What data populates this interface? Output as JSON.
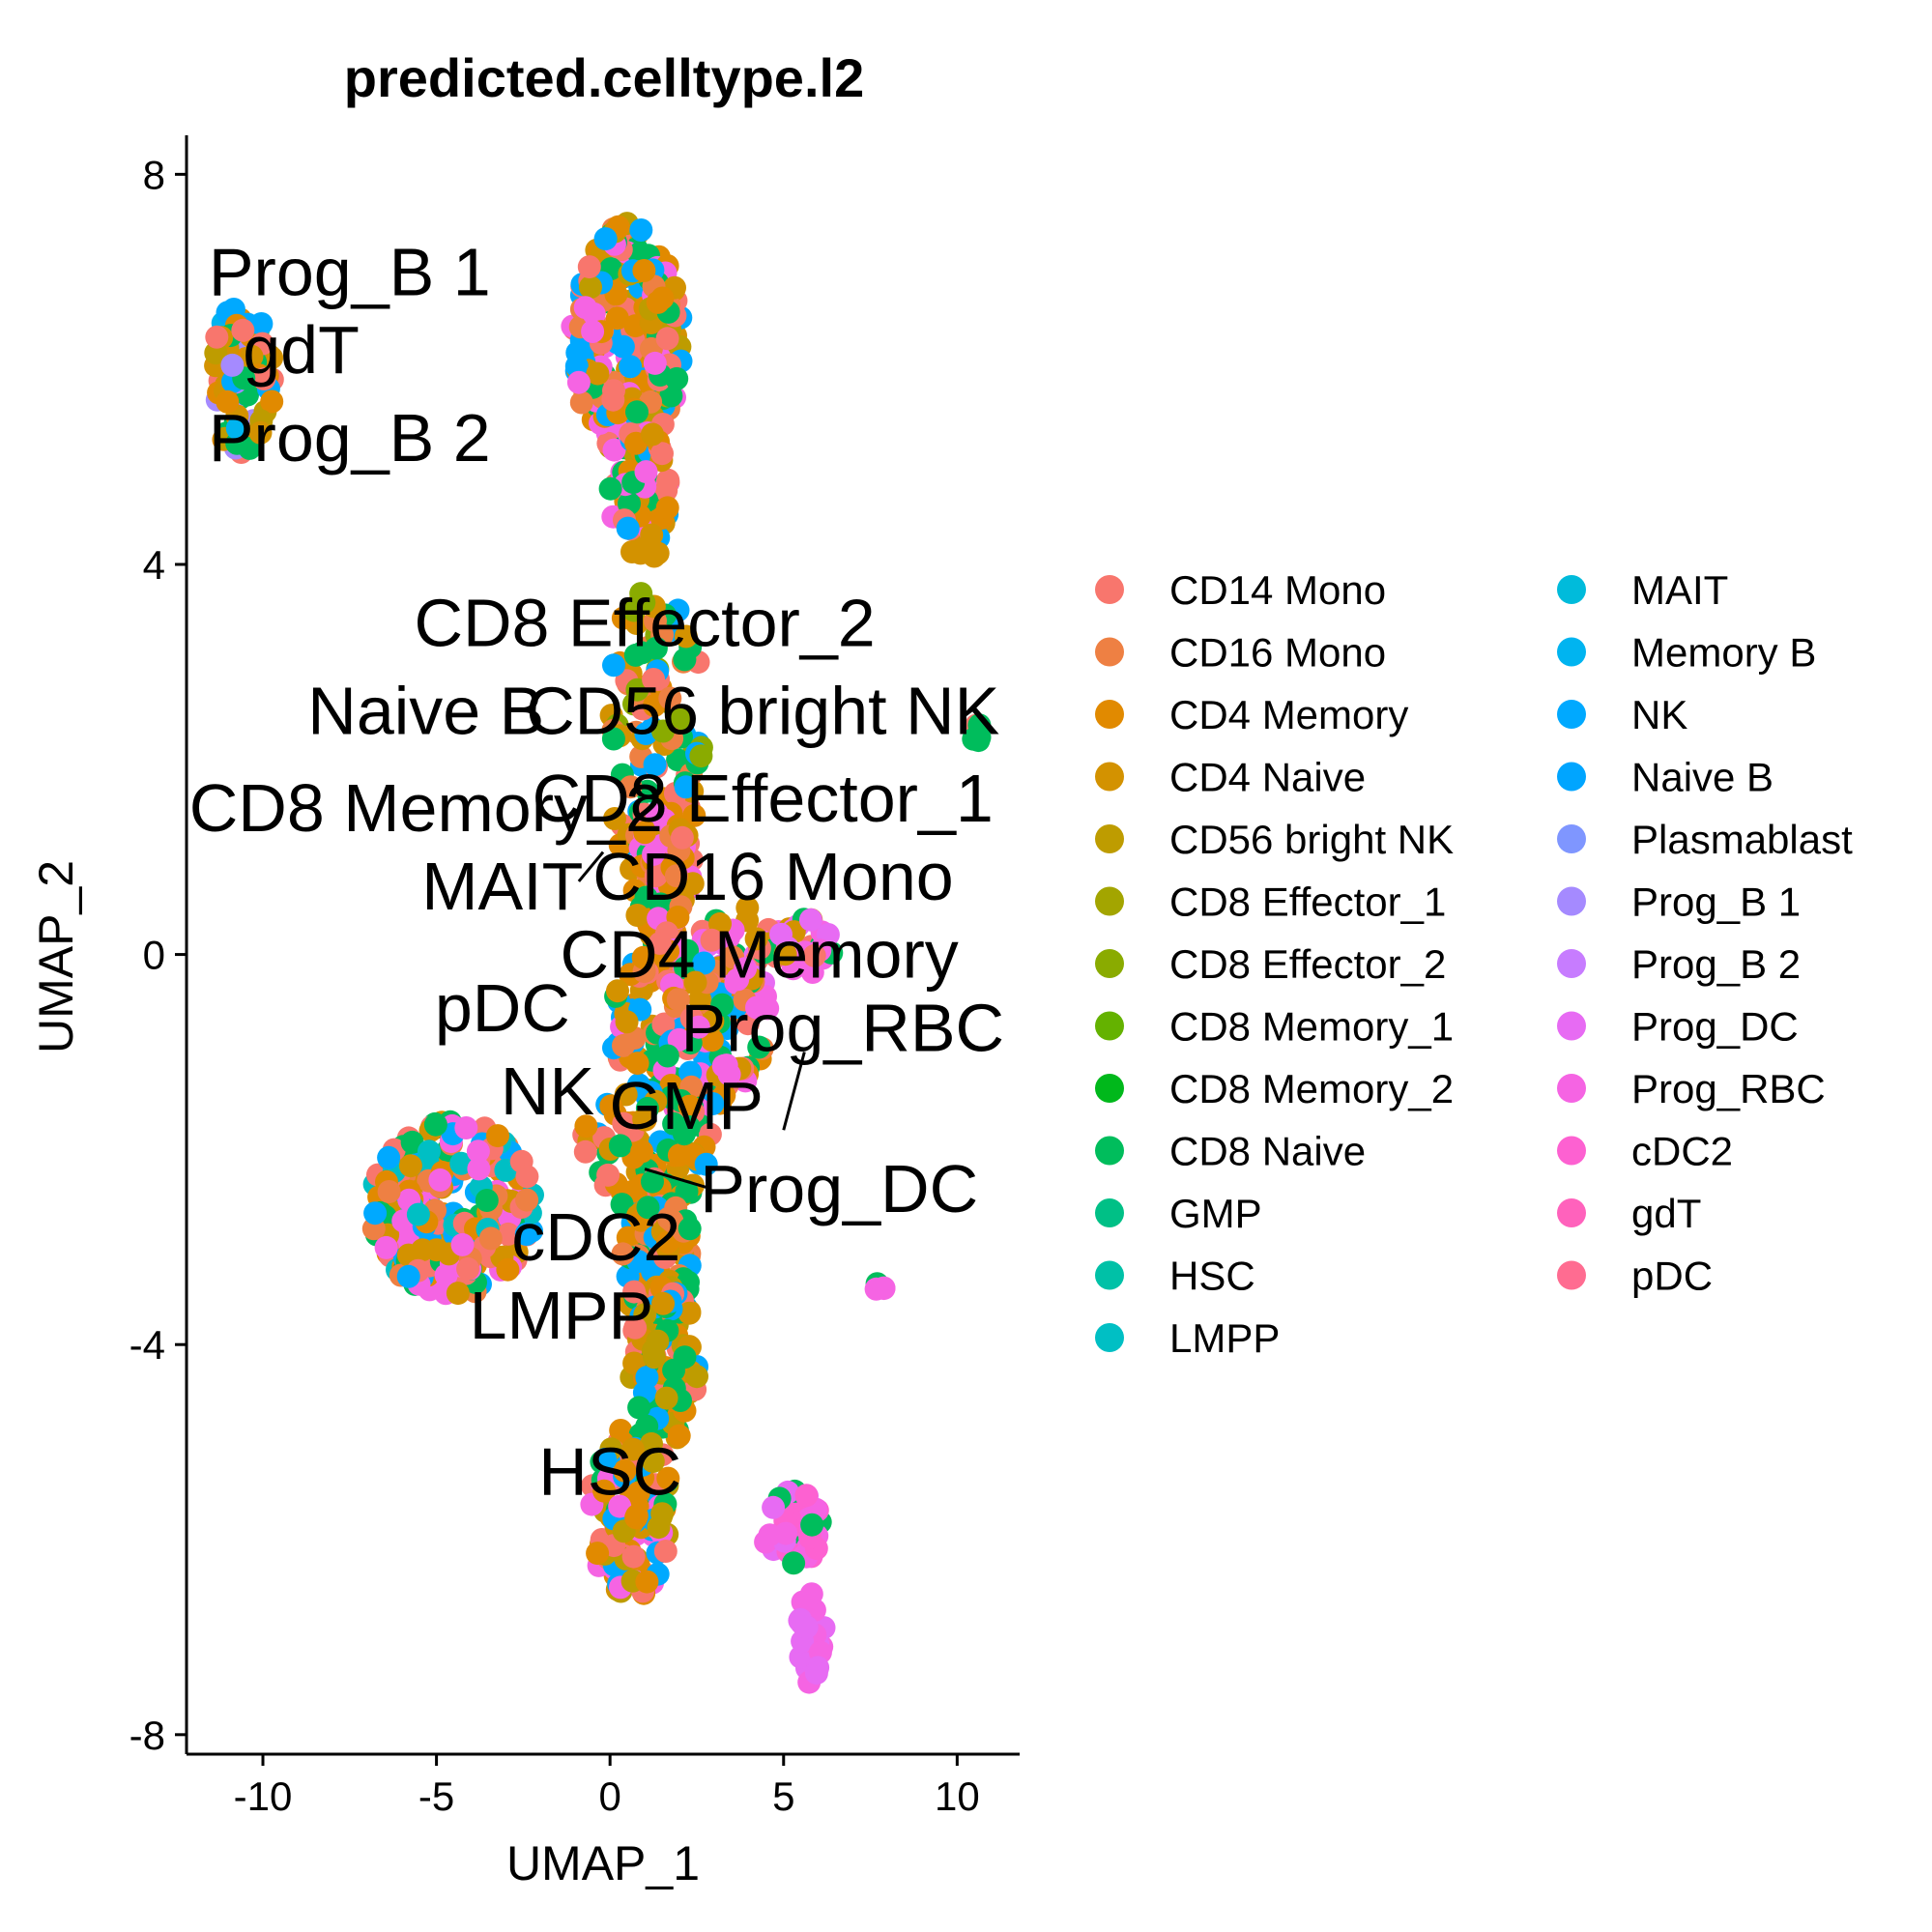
{
  "chart_data": {
    "type": "scatter",
    "title": "predicted.celltype.l2",
    "xlabel": "UMAP_1",
    "ylabel": "UMAP_2",
    "xlim": [
      -12.2,
      11.8
    ],
    "ylim": [
      -8.2,
      8.4
    ],
    "xticks": [
      -10,
      -5,
      0,
      5,
      10
    ],
    "yticks": [
      -8,
      -4,
      0,
      4,
      8
    ],
    "xtick_labels": [
      "-10",
      "-5",
      "0",
      "5",
      "10"
    ],
    "ytick_labels": [
      "-8",
      "-4",
      "0",
      "4",
      "8"
    ],
    "grid": false,
    "legend_position": "right",
    "legend_columns": 2,
    "categories": [
      {
        "name": "CD14 Mono",
        "color": "#F8766D"
      },
      {
        "name": "CD16 Mono",
        "color": "#EE8043"
      },
      {
        "name": "CD4 Memory",
        "color": "#E18A00"
      },
      {
        "name": "CD4 Naive",
        "color": "#D39200"
      },
      {
        "name": "CD56 bright NK",
        "color": "#BE9C00"
      },
      {
        "name": "CD8 Effector_1",
        "color": "#A3A500"
      },
      {
        "name": "CD8 Effector_2",
        "color": "#8AAB00"
      },
      {
        "name": "CD8 Memory_1",
        "color": "#64B200"
      },
      {
        "name": "CD8 Memory_2",
        "color": "#00B81B"
      },
      {
        "name": "CD8 Naive",
        "color": "#00BD5C"
      },
      {
        "name": "GMP",
        "color": "#00C086"
      },
      {
        "name": "HSC",
        "color": "#00C1A7"
      },
      {
        "name": "LMPP",
        "color": "#00BFC4"
      },
      {
        "name": "MAIT",
        "color": "#00BBDB"
      },
      {
        "name": "Memory B",
        "color": "#00B4F0"
      },
      {
        "name": "NK",
        "color": "#00A9FF"
      },
      {
        "name": "Naive B",
        "color": "#00A5FF"
      },
      {
        "name": "Plasmablast",
        "color": "#7F96FF"
      },
      {
        "name": "Prog_B 1",
        "color": "#A58AFF"
      },
      {
        "name": "Prog_B 2",
        "color": "#C77CFF"
      },
      {
        "name": "Prog_DC",
        "color": "#E76BF3"
      },
      {
        "name": "Prog_RBC",
        "color": "#F564E3"
      },
      {
        "name": "cDC2",
        "color": "#FD61D1"
      },
      {
        "name": "gdT",
        "color": "#FF62BC"
      },
      {
        "name": "pDC",
        "color": "#FF6C91"
      }
    ],
    "clusters": [
      {
        "label": "CD8 Effector_2",
        "cx": 1.3,
        "cy": 2.2,
        "rx": 1.5,
        "ry": 1.6,
        "n": 120,
        "mix": [
          0,
          2,
          3,
          9,
          15,
          6,
          1
        ]
      },
      {
        "label": "Naive B",
        "cx": 0.5,
        "cy": 6.3,
        "rx": 1.6,
        "ry": 1.2,
        "n": 260,
        "mix": [
          0,
          2,
          3,
          9,
          15,
          1,
          4,
          21
        ]
      },
      {
        "label": "CD56 bright NK",
        "cx": 0.9,
        "cy": 4.7,
        "rx": 0.9,
        "ry": 0.7,
        "n": 70,
        "mix": [
          0,
          3,
          9,
          15,
          21,
          2
        ]
      },
      {
        "label": "CD8 Memory_2",
        "cx": 1.6,
        "cy": 0.7,
        "rx": 0.9,
        "ry": 0.8,
        "n": 70,
        "mix": [
          0,
          2,
          3,
          9,
          21,
          1
        ]
      },
      {
        "label": "MAIT",
        "cx": 4.5,
        "cy": 0.1,
        "rx": 2.0,
        "ry": 0.4,
        "n": 60,
        "mix": [
          21,
          20,
          9,
          0,
          3
        ]
      },
      {
        "label": "CD4 Memory",
        "cx": 2.3,
        "cy": -0.7,
        "rx": 2.3,
        "ry": 0.9,
        "n": 160,
        "mix": [
          0,
          2,
          3,
          9,
          15,
          21,
          1
        ]
      },
      {
        "label": "NK",
        "cx": 1.0,
        "cy": -2.0,
        "rx": 2.0,
        "ry": 0.6,
        "n": 80,
        "mix": [
          0,
          3,
          9,
          15,
          2
        ]
      },
      {
        "label": "pDC",
        "cx": -4.5,
        "cy": -2.6,
        "rx": 2.4,
        "ry": 0.9,
        "n": 230,
        "mix": [
          0,
          1,
          2,
          3,
          9,
          15,
          12,
          21
        ]
      },
      {
        "label": "cDC2",
        "cx": 1.4,
        "cy": -3.2,
        "rx": 1.1,
        "ry": 0.7,
        "n": 90,
        "mix": [
          0,
          2,
          3,
          9,
          15,
          1
        ]
      },
      {
        "label": "LMPP",
        "cx": 1.6,
        "cy": -4.2,
        "rx": 1.0,
        "ry": 0.8,
        "n": 90,
        "mix": [
          0,
          2,
          3,
          9,
          15,
          4
        ]
      },
      {
        "label": "HSC",
        "cx": 0.6,
        "cy": -5.7,
        "rx": 1.2,
        "ry": 0.9,
        "n": 130,
        "mix": [
          0,
          2,
          3,
          9,
          15,
          4,
          21
        ]
      },
      {
        "label": "Prog_B 2",
        "cx": -10.6,
        "cy": 5.9,
        "rx": 0.9,
        "ry": 0.8,
        "n": 90,
        "mix": [
          4,
          3,
          2,
          9,
          15,
          14,
          0,
          18
        ]
      },
      {
        "label": "Prog_RBC",
        "cx": 5.3,
        "cy": -5.9,
        "rx": 0.9,
        "ry": 0.4,
        "n": 40,
        "mix": [
          21,
          20,
          22,
          9
        ]
      },
      {
        "label": "Prog_DC",
        "cx": 5.8,
        "cy": -7.0,
        "rx": 0.4,
        "ry": 0.5,
        "n": 24,
        "mix": [
          21,
          20
        ]
      },
      {
        "label": "GMP",
        "cx": 10.6,
        "cy": 2.2,
        "rx": 0.2,
        "ry": 0.2,
        "n": 5,
        "mix": [
          0,
          9
        ]
      },
      {
        "label": "CD16 Mono",
        "cx": 7.8,
        "cy": -3.4,
        "rx": 0.15,
        "ry": 0.12,
        "n": 4,
        "mix": [
          9,
          21
        ]
      }
    ],
    "annotations": [
      {
        "text": "Prog_B 1",
        "x": -7.5,
        "y": 7.0
      },
      {
        "text": "gdT",
        "x": -8.9,
        "y": 6.2
      },
      {
        "text": "Prog_B 2",
        "x": -7.5,
        "y": 5.3
      },
      {
        "text": "CD8 Effector_2",
        "x": 1.0,
        "y": 3.4
      },
      {
        "text": "Naive B",
        "x": -5.3,
        "y": 2.5
      },
      {
        "text": "CD56 bright NK",
        "x": 4.4,
        "y": 2.5
      },
      {
        "text": "CD8 Memory_2",
        "x": -5.3,
        "y": 1.5
      },
      {
        "text": "CD8 Effector_1",
        "x": 4.4,
        "y": 1.6
      },
      {
        "text": "MAIT",
        "x": -3.1,
        "y": 0.7
      },
      {
        "text": "CD16 Mono",
        "x": 4.7,
        "y": 0.8
      },
      {
        "text": "CD4 Memory",
        "x": 4.3,
        "y": 0.0
      },
      {
        "text": "pDC",
        "x": -3.1,
        "y": -0.55
      },
      {
        "text": "Prog_RBC",
        "x": 6.7,
        "y": -0.75
      },
      {
        "text": "NK",
        "x": -1.8,
        "y": -1.4
      },
      {
        "text": "GMP",
        "x": 2.2,
        "y": -1.55
      },
      {
        "text": "Prog_DC",
        "x": 6.6,
        "y": -2.4
      },
      {
        "text": "cDC2",
        "x": -0.4,
        "y": -2.9
      },
      {
        "text": "LMPP",
        "x": -1.4,
        "y": -3.7
      },
      {
        "text": "HSC",
        "x": 0.0,
        "y": -5.3
      }
    ],
    "segments": [
      {
        "x1": -0.9,
        "y1": 0.75,
        "x2": -0.2,
        "y2": 1.05
      },
      {
        "x1": 2.9,
        "y1": -2.4,
        "x2": 1.0,
        "y2": -2.2
      },
      {
        "x1": 5.0,
        "y1": -1.8,
        "x2": 5.6,
        "y2": -1.0
      }
    ]
  }
}
